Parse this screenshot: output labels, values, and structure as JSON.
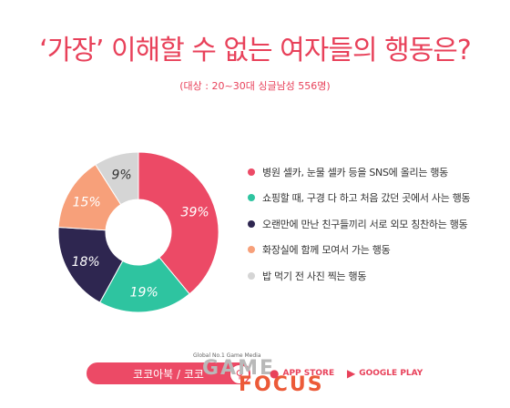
{
  "title": "‘가장’ 이해할 수 없는 여자들의 행동은?",
  "subtitle": "(대상 : 20~30대 싱글남성 556명)",
  "chart_data": {
    "type": "pie",
    "donut": true,
    "categories": [
      "병원 셀카, 눈물 셀카 등을 SNS에 올리는 행동",
      "쇼핑할 때, 구경 다 하고 처음 갔던 곳에서 사는 행동",
      "오랜만에 만난 친구들끼리 서로 외모 칭찬하는 행동",
      "화장실에 함께 모여서 가는 행동",
      "밥 먹기 전 사진 찍는 행동"
    ],
    "values": [
      39,
      19,
      18,
      15,
      9
    ],
    "value_labels": [
      "39%",
      "19%",
      "18%",
      "15%",
      "9%"
    ],
    "colors": [
      "#ec4a66",
      "#2ec4a0",
      "#2e2650",
      "#f7a07a",
      "#d5d5d5"
    ],
    "label_colors": [
      "#ffffff",
      "#ffffff",
      "#ffffff",
      "#ffffff",
      "#333333"
    ],
    "legend_position": "right"
  },
  "footer": {
    "search_text": "코코아북 / 코코",
    "search_icon": "magnifier-icon",
    "logo_small": "Global No.1 Game Media",
    "logo_game": "GAME",
    "logo_focus": "FOCUS",
    "app_store": "APP STORE",
    "google_play": "GOOGLE PLAY",
    "apple_icon": "apple-icon",
    "play_icon": "play-icon"
  }
}
